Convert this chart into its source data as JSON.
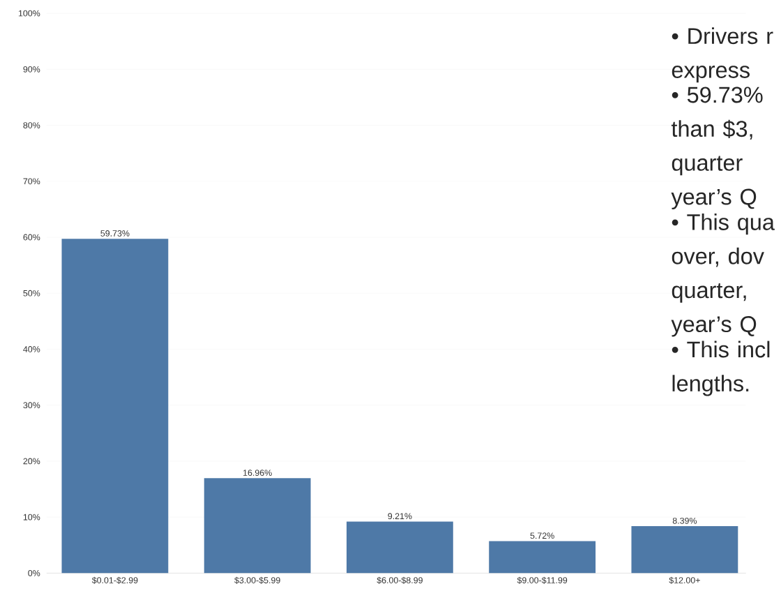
{
  "chart_data": {
    "type": "bar",
    "categories": [
      "$0.01-$2.99",
      "$3.00-$5.99",
      "$6.00-$8.99",
      "$9.00-$11.99",
      "$12.00+"
    ],
    "values": [
      59.73,
      16.96,
      9.21,
      5.72,
      8.39
    ],
    "value_labels": [
      "59.73%",
      "16.96%",
      "9.21%",
      "5.72%",
      "8.39%"
    ],
    "color": "#4e79a7",
    "ylim": [
      0,
      100
    ],
    "yticks": [
      {
        "value": 0,
        "label": "0%"
      },
      {
        "value": 10,
        "label": "10%"
      },
      {
        "value": 20,
        "label": "20%"
      },
      {
        "value": 30,
        "label": "30%"
      },
      {
        "value": 40,
        "label": "40%"
      },
      {
        "value": 50,
        "label": "50%"
      },
      {
        "value": 60,
        "label": "60%"
      },
      {
        "value": 70,
        "label": "70%"
      },
      {
        "value": 80,
        "label": "80%"
      },
      {
        "value": 90,
        "label": "90%"
      },
      {
        "value": 100,
        "label": "100%"
      }
    ],
    "grid": "y",
    "annotations": [
      "• Drivers r express",
      "• 59.73% than $3, quarter year’s Q",
      "• This qua over, dov quarter, year’s Q",
      "• This incl lengths."
    ]
  }
}
